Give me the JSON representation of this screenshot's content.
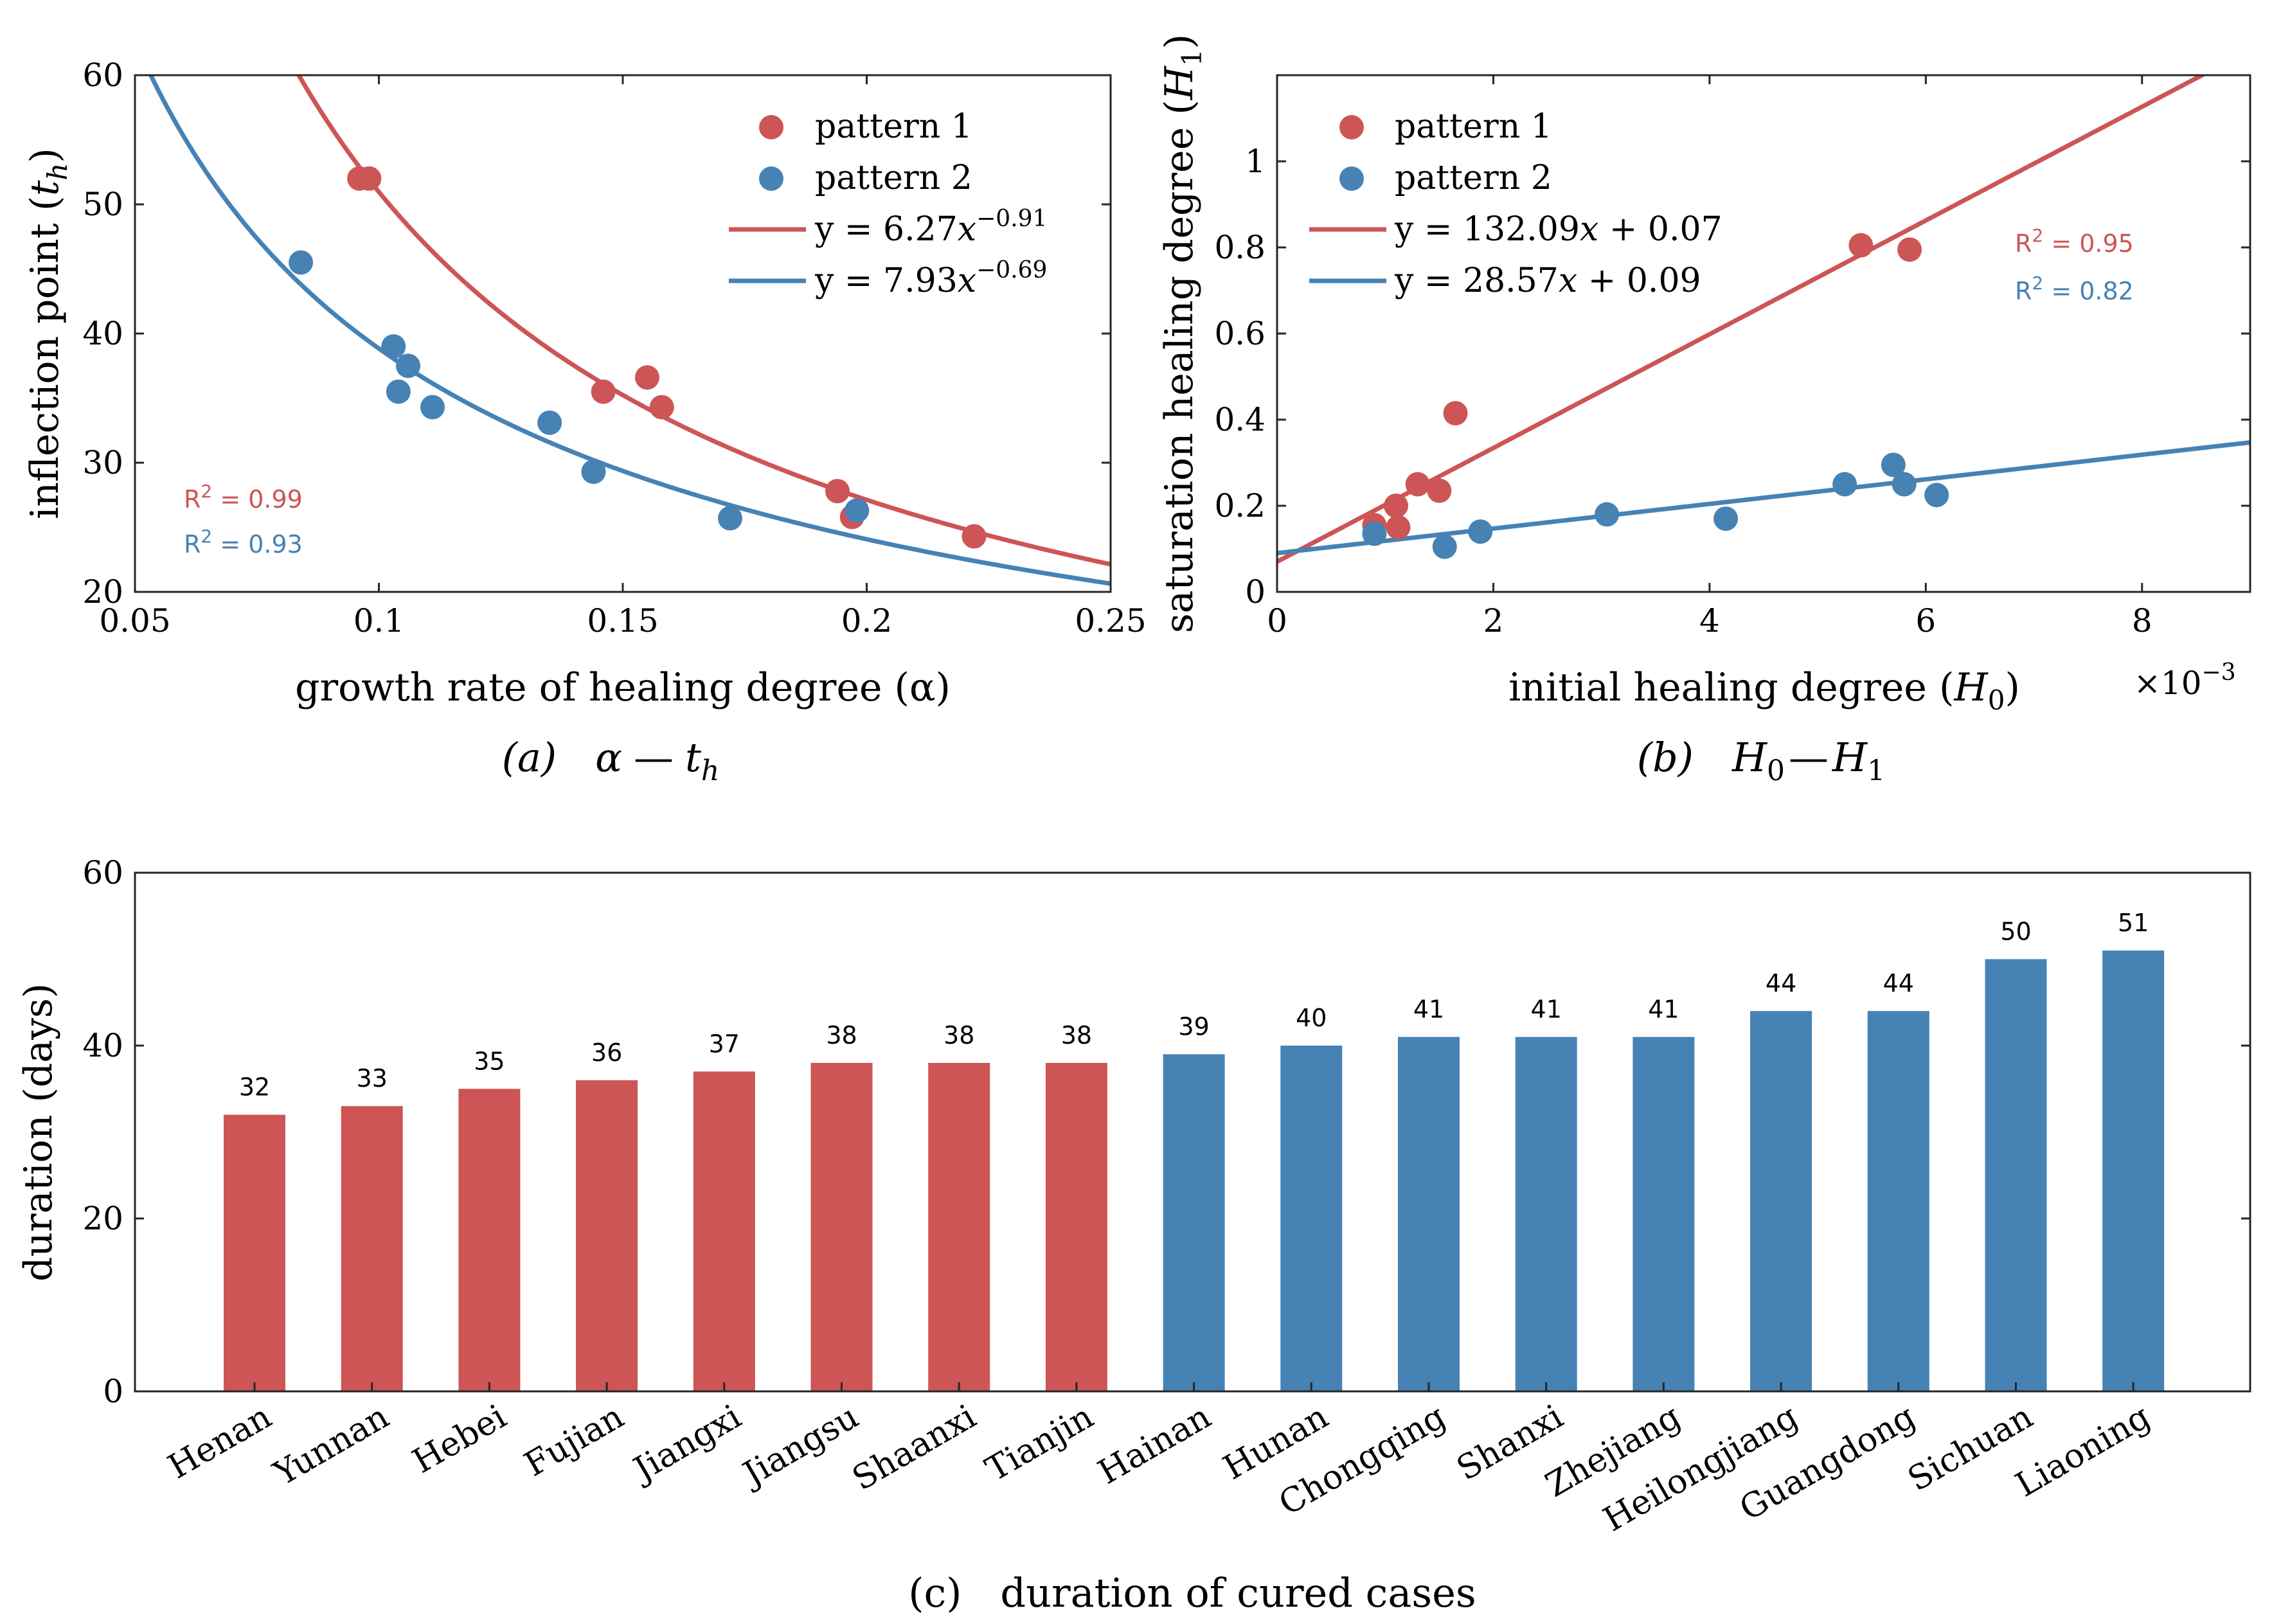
{
  "colors": {
    "pattern1": "#cd5555",
    "pattern2": "#4682b4",
    "axis": "#262626"
  },
  "chart_data": [
    {
      "id": "a",
      "type": "scatter",
      "caption": "(a)",
      "caption_math_lhs": "α",
      "caption_math_sep": "—",
      "caption_math_rhs": "t",
      "caption_math_rhs_sub": "h",
      "xlabel": "growth rate of healing degree (α)",
      "ylabel_text": "inflection point (",
      "ylabel_var": "t",
      "ylabel_sub": "h",
      "ylabel_close": ")",
      "xlim": [
        0.05,
        0.25
      ],
      "ylim": [
        20,
        60
      ],
      "xticks": [
        0.05,
        0.1,
        0.15,
        0.2,
        0.25
      ],
      "xtick_labels": [
        "0.05",
        "0.1",
        "0.15",
        "0.2",
        "0.25"
      ],
      "yticks": [
        20,
        30,
        40,
        50,
        60
      ],
      "ytick_labels": [
        "20",
        "30",
        "40",
        "50",
        "60"
      ],
      "legend": {
        "position": "top-right",
        "p1": "pattern 1",
        "p2": "pattern 2",
        "fit1_prefix": "y = 6.27",
        "fit1_var": "x",
        "fit1_exp": "−0.91",
        "fit2_prefix": "y = 7.93",
        "fit2_var": "x",
        "fit2_exp": "−0.69"
      },
      "r2": [
        {
          "label": "R",
          "sup": "2",
          "value": " =  0.99",
          "series": "pattern 1"
        },
        {
          "label": "R",
          "sup": "2",
          "value": " =  0.93",
          "series": "pattern 2"
        }
      ],
      "series": [
        {
          "name": "pattern 1",
          "points": [
            [
              0.096,
              52.0
            ],
            [
              0.098,
              52.0
            ],
            [
              0.146,
              35.5
            ],
            [
              0.155,
              36.6
            ],
            [
              0.158,
              34.3
            ],
            [
              0.194,
              27.8
            ],
            [
              0.197,
              25.8
            ],
            [
              0.222,
              24.3
            ]
          ],
          "fit": {
            "kind": "power",
            "a": 6.27,
            "b": -0.91
          }
        },
        {
          "name": "pattern 2",
          "points": [
            [
              0.084,
              45.5
            ],
            [
              0.103,
              39.0
            ],
            [
              0.104,
              35.5
            ],
            [
              0.106,
              37.5
            ],
            [
              0.111,
              34.3
            ],
            [
              0.135,
              33.1
            ],
            [
              0.144,
              29.3
            ],
            [
              0.172,
              25.7
            ],
            [
              0.198,
              26.3
            ]
          ],
          "fit": {
            "kind": "power",
            "a": 7.93,
            "b": -0.69
          }
        }
      ]
    },
    {
      "id": "b",
      "type": "scatter",
      "caption": "(b)",
      "caption_math_lhs": "H",
      "caption_math_lhs_sub": "0",
      "caption_math_sep": "—",
      "caption_math_rhs": "H",
      "caption_math_rhs_sub": "1",
      "xlabel_text": "initial healing degree (",
      "xlabel_var": "H",
      "xlabel_sub": "0",
      "xlabel_close": ")",
      "ylabel_text": "saturation healing degree (",
      "ylabel_var": "H",
      "ylabel_sub": "1",
      "ylabel_close": ")",
      "x_exponent_base": "×10",
      "x_exponent_power": "−3",
      "xlim": [
        0,
        9
      ],
      "ylim": [
        0,
        1.2
      ],
      "xticks": [
        0,
        2,
        4,
        6,
        8
      ],
      "xtick_labels": [
        "0",
        "2",
        "4",
        "6",
        "8"
      ],
      "yticks": [
        0,
        0.2,
        0.4,
        0.6,
        0.8,
        1.0
      ],
      "ytick_labels": [
        "0",
        "0.2",
        "0.4",
        "0.6",
        "0.8",
        "1"
      ],
      "legend": {
        "position": "top-left",
        "p1": "pattern 1",
        "p2": "pattern 2",
        "fit1_prefix": "y = 132.09",
        "fit1_var": "x",
        "fit1_suffix": " + 0.07",
        "fit2_prefix": "y = 28.57",
        "fit2_var": "x",
        "fit2_suffix": " + 0.09"
      },
      "r2": [
        {
          "label": "R",
          "sup": "2",
          "value": " =  0.95",
          "series": "pattern 1"
        },
        {
          "label": "R",
          "sup": "2",
          "value": " =  0.82",
          "series": "pattern 2"
        }
      ],
      "series": [
        {
          "name": "pattern 1",
          "points": [
            [
              0.9,
              0.155
            ],
            [
              1.1,
              0.2
            ],
            [
              1.12,
              0.15
            ],
            [
              1.3,
              0.25
            ],
            [
              1.5,
              0.235
            ],
            [
              1.65,
              0.415
            ],
            [
              5.4,
              0.805
            ],
            [
              5.85,
              0.795
            ]
          ],
          "fit": {
            "kind": "linear",
            "slope": 0.13209,
            "intercept": 0.07
          }
        },
        {
          "name": "pattern 2",
          "points": [
            [
              0.9,
              0.135
            ],
            [
              1.55,
              0.105
            ],
            [
              1.88,
              0.14
            ],
            [
              3.05,
              0.18
            ],
            [
              4.15,
              0.17
            ],
            [
              5.25,
              0.25
            ],
            [
              5.7,
              0.295
            ],
            [
              5.8,
              0.25
            ],
            [
              6.1,
              0.225
            ]
          ],
          "fit": {
            "kind": "linear",
            "slope": 0.02857,
            "intercept": 0.09
          }
        }
      ]
    },
    {
      "id": "c",
      "type": "bar",
      "caption": "(c)",
      "caption_text": "duration of cured cases",
      "xlabel": "",
      "ylabel": "duration (days)",
      "ylim": [
        0,
        60
      ],
      "yticks": [
        0,
        20,
        40,
        60
      ],
      "ytick_labels": [
        "0",
        "20",
        "40",
        "60"
      ],
      "categories": [
        "Henan",
        "Yunnan",
        "Hebei",
        "Fujian",
        "Jiangxi",
        "Jiangsu",
        "Shaanxi",
        "Tianjin",
        "Hainan",
        "Hunan",
        "Chongqing",
        "Shanxi",
        "Zhejiang",
        "Heilongjiang",
        "Guangdong",
        "Sichuan",
        "Liaoning"
      ],
      "values": [
        32,
        33,
        35,
        36,
        37,
        38,
        38,
        38,
        39,
        40,
        41,
        41,
        41,
        44,
        44,
        50,
        51
      ],
      "groups": [
        "pattern 1",
        "pattern 1",
        "pattern 1",
        "pattern 1",
        "pattern 1",
        "pattern 1",
        "pattern 1",
        "pattern 1",
        "pattern 2",
        "pattern 2",
        "pattern 2",
        "pattern 2",
        "pattern 2",
        "pattern 2",
        "pattern 2",
        "pattern 2",
        "pattern 2"
      ]
    }
  ]
}
